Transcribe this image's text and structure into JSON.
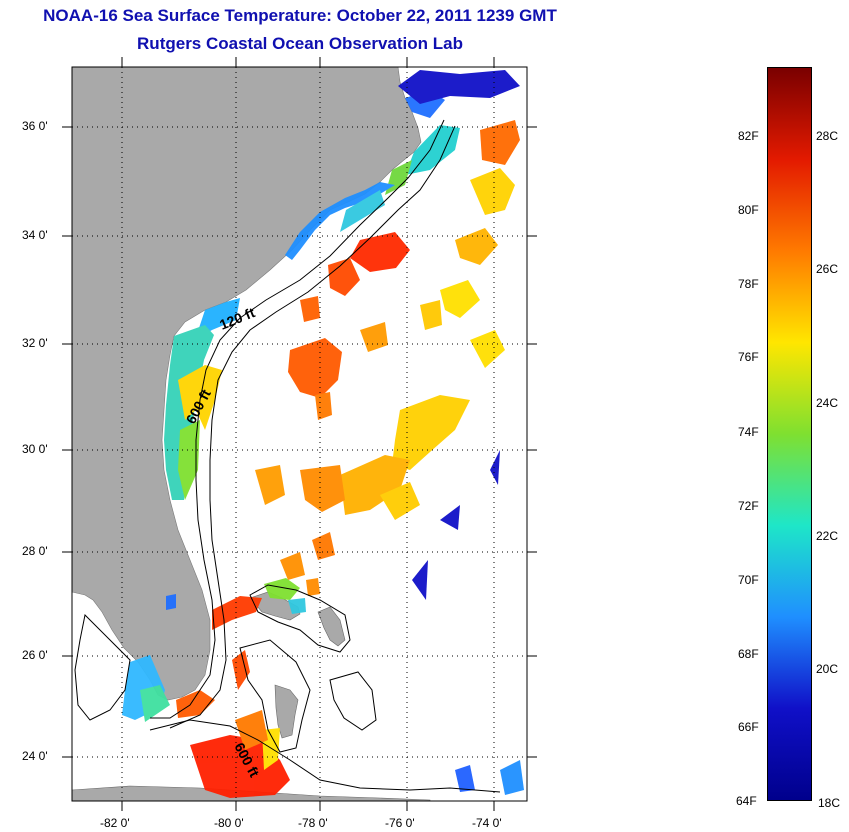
{
  "header": {
    "title": "NOAA-16 Sea Surface Temperature:  October 22, 2011 1239 GMT",
    "subtitle": "Rutgers Coastal Ocean Observation Lab"
  },
  "map": {
    "lat_labels": [
      "36 0'",
      "34 0'",
      "32 0'",
      "30 0'",
      "28 0'",
      "26 0'",
      "24 0'"
    ],
    "lon_labels": [
      "-82 0'",
      "-80 0'",
      "-78 0'",
      "-76 0'",
      "-74 0'"
    ],
    "contour_labels": [
      "120 ft",
      "600 ft",
      "600 ft"
    ],
    "land_color": "#a9a9a9"
  },
  "colorbar": {
    "fahrenheit_labels": [
      "82F",
      "80F",
      "78F",
      "76F",
      "74F",
      "72F",
      "70F",
      "68F",
      "66F",
      "64F"
    ],
    "celsius_labels": [
      "28C",
      "26C",
      "24C",
      "22C",
      "20C",
      "18C"
    ],
    "colors": [
      "#7a0000",
      "#e31a00",
      "#ff7a00",
      "#ffe600",
      "#7fe030",
      "#1ee6c8",
      "#1f8fff",
      "#1010c8",
      "#00008c"
    ]
  }
}
